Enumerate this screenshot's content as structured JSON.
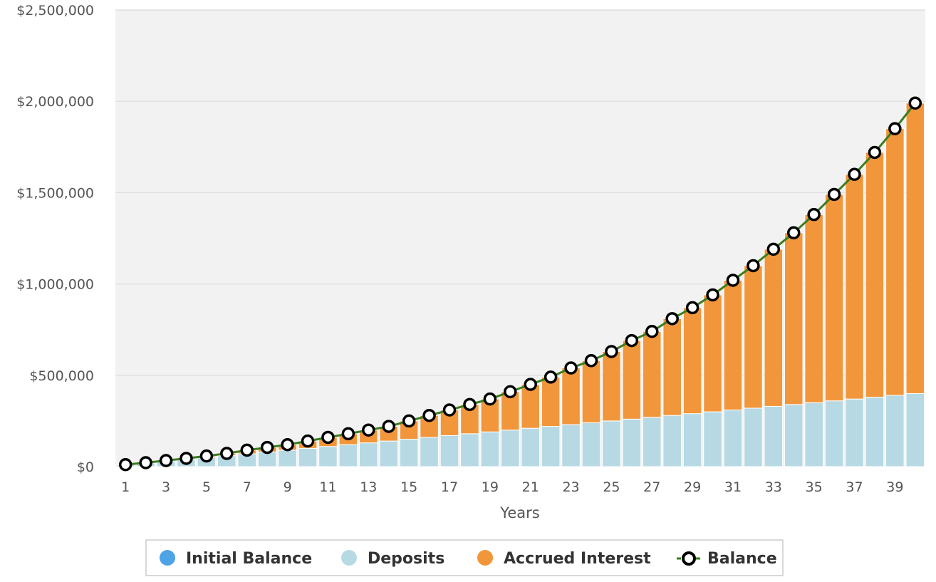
{
  "chart_data": {
    "type": "bar",
    "stacked": true,
    "xlabel": "Years",
    "ylabel": "",
    "ylim": [
      0,
      2500000
    ],
    "yticks": [
      0,
      500000,
      1000000,
      1500000,
      2000000,
      2500000
    ],
    "ytick_labels": [
      "$0",
      "$500,000",
      "$1,000,000",
      "$1,500,000",
      "$2,000,000",
      "$2,500,000"
    ],
    "categories": [
      1,
      2,
      3,
      4,
      5,
      6,
      7,
      8,
      9,
      10,
      11,
      12,
      13,
      14,
      15,
      16,
      17,
      18,
      19,
      20,
      21,
      22,
      23,
      24,
      25,
      26,
      27,
      28,
      29,
      30,
      31,
      32,
      33,
      34,
      35,
      36,
      37,
      38,
      39,
      40
    ],
    "xtick_labels": [
      "1",
      "3",
      "5",
      "7",
      "9",
      "11",
      "13",
      "15",
      "17",
      "19",
      "21",
      "23",
      "25",
      "27",
      "29",
      "31",
      "33",
      "35",
      "37",
      "39"
    ],
    "grid": true,
    "legend_position": "bottom",
    "series": [
      {
        "name": "Initial Balance",
        "kind": "bar",
        "color": "#4da3e6",
        "values": [
          0,
          0,
          0,
          0,
          0,
          0,
          0,
          0,
          0,
          0,
          0,
          0,
          0,
          0,
          0,
          0,
          0,
          0,
          0,
          0,
          0,
          0,
          0,
          0,
          0,
          0,
          0,
          0,
          0,
          0,
          0,
          0,
          0,
          0,
          0,
          0,
          0,
          0,
          0,
          0
        ]
      },
      {
        "name": "Deposits",
        "kind": "bar",
        "color": "#b7d9e4",
        "values": [
          10000,
          20000,
          30000,
          40000,
          50000,
          60000,
          70000,
          80000,
          90000,
          100000,
          110000,
          120000,
          130000,
          140000,
          150000,
          160000,
          170000,
          180000,
          190000,
          200000,
          210000,
          220000,
          230000,
          240000,
          250000,
          260000,
          270000,
          280000,
          290000,
          300000,
          310000,
          320000,
          330000,
          340000,
          350000,
          360000,
          370000,
          380000,
          390000,
          400000
        ]
      },
      {
        "name": "Accrued Interest",
        "kind": "bar",
        "color": "#f2963b",
        "values": [
          700,
          1400,
          3000,
          5000,
          8000,
          12000,
          20000,
          25000,
          30000,
          40000,
          50000,
          60000,
          70000,
          80000,
          100000,
          120000,
          140000,
          160000,
          180000,
          210000,
          240000,
          270000,
          310000,
          340000,
          380000,
          430000,
          470000,
          530000,
          580000,
          640000,
          710000,
          780000,
          860000,
          940000,
          1030000,
          1130000,
          1230000,
          1340000,
          1460000,
          1590000
        ]
      },
      {
        "name": "Balance",
        "kind": "line",
        "color": "#3a7d1e",
        "values": [
          10700,
          21400,
          33000,
          45000,
          58000,
          72000,
          90000,
          105000,
          120000,
          140000,
          160000,
          180000,
          200000,
          220000,
          250000,
          280000,
          310000,
          340000,
          370000,
          410000,
          450000,
          490000,
          540000,
          580000,
          630000,
          690000,
          740000,
          810000,
          870000,
          940000,
          1020000,
          1100000,
          1190000,
          1280000,
          1380000,
          1490000,
          1600000,
          1720000,
          1850000,
          1990000
        ]
      }
    ]
  }
}
